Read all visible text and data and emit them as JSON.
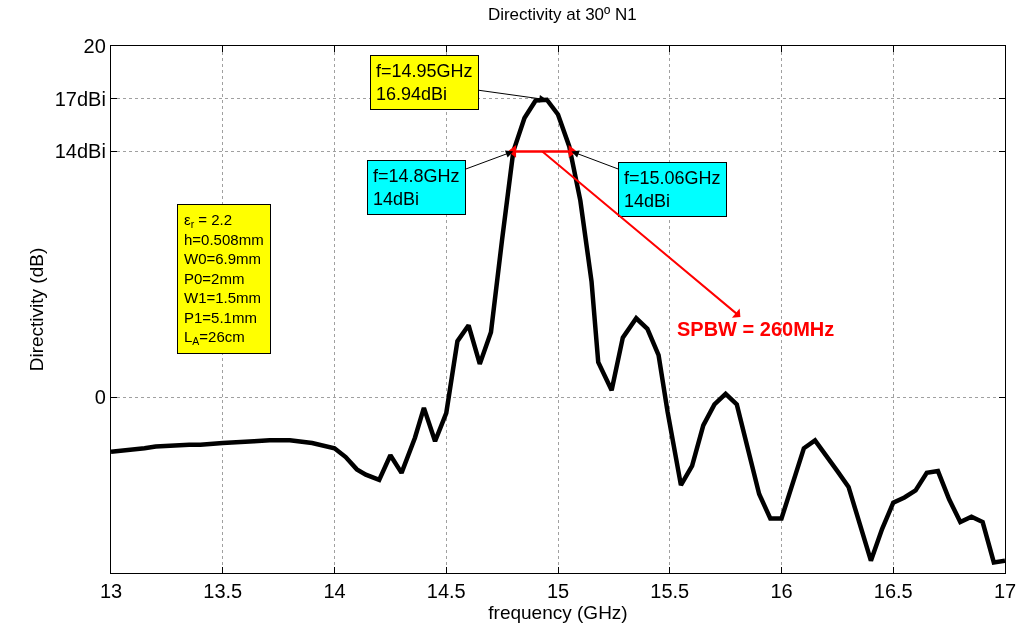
{
  "chart_data": {
    "type": "line",
    "title": "Directivity at 30º N1",
    "xlabel": "frequency (GHz)",
    "ylabel": "Directivity (dB)",
    "xlim": [
      13,
      17
    ],
    "xticks": [
      13,
      13.5,
      14,
      14.5,
      15,
      15.5,
      16,
      16.5,
      17
    ],
    "ylim": [
      -10,
      20
    ],
    "yticks": [
      0,
      {
        "value": 14,
        "label": "14dBi"
      },
      {
        "value": 17,
        "label": "17dBi"
      },
      20
    ],
    "grid": true,
    "marker": "none",
    "line_style": "solid",
    "series": [
      {
        "color": "#000000",
        "x": [
          13.0,
          13.15,
          13.2,
          13.35,
          13.4,
          13.5,
          13.64,
          13.71,
          13.8,
          13.9,
          14.0,
          14.05,
          14.1,
          14.14,
          14.2,
          14.25,
          14.3,
          14.36,
          14.4,
          14.45,
          14.5,
          14.55,
          14.6,
          14.65,
          14.7,
          14.75,
          14.8,
          14.85,
          14.9,
          14.95,
          15.0,
          15.05,
          15.1,
          15.15,
          15.18,
          15.24,
          15.29,
          15.35,
          15.4,
          15.45,
          15.49,
          15.55,
          15.6,
          15.65,
          15.7,
          15.75,
          15.8,
          15.9,
          15.95,
          16.0,
          16.1,
          16.15,
          16.25,
          16.3,
          16.4,
          16.45,
          16.5,
          16.55,
          16.6,
          16.65,
          16.7,
          16.75,
          16.8,
          16.85,
          16.9,
          16.95,
          17.0
        ],
        "values": [
          -3.1,
          -2.9,
          -2.8,
          -2.7,
          -2.7,
          -2.6,
          -2.5,
          -2.45,
          -2.45,
          -2.6,
          -2.9,
          -3.4,
          -4.1,
          -4.4,
          -4.7,
          -3.3,
          -4.3,
          -2.3,
          -0.6,
          -2.5,
          -0.9,
          3.2,
          4.1,
          1.9,
          3.7,
          9.0,
          14.0,
          15.9,
          16.9,
          16.94,
          16.1,
          14.3,
          11.2,
          6.6,
          2.0,
          0.4,
          3.4,
          4.5,
          3.9,
          2.4,
          -0.8,
          -5.0,
          -3.9,
          -1.6,
          -0.4,
          0.2,
          -0.4,
          -5.5,
          -6.9,
          -6.9,
          -2.9,
          -2.45,
          -4.2,
          -5.1,
          -9.3,
          -7.5,
          -6.0,
          -5.7,
          -5.3,
          -4.3,
          -4.2,
          -5.8,
          -7.1,
          -6.8,
          -7.1,
          -9.4,
          -9.3
        ]
      },
      {
        "color": "#ff0000",
        "x": [
          14.8,
          15.06
        ],
        "values": [
          14,
          14
        ],
        "marker": "triangle"
      }
    ],
    "annotations": [
      {
        "text": "f=14.95GHz\n16.94dBi",
        "x": 14.95,
        "y": 16.94
      },
      {
        "text": "f=14.8GHz\n14dBi",
        "x": 14.8,
        "y": 14
      },
      {
        "text": "f=15.06GHz\n14dBi",
        "x": 15.06,
        "y": 14
      },
      "SPBW = 260MHz",
      "ε$_{r}$ = 2.2\nh=0.508mm\nW0=6.9mm\nP0=2mm\nW1=1.5mm\nP1=5.1mm\nL$_{A}$=26cm"
    ]
  }
}
